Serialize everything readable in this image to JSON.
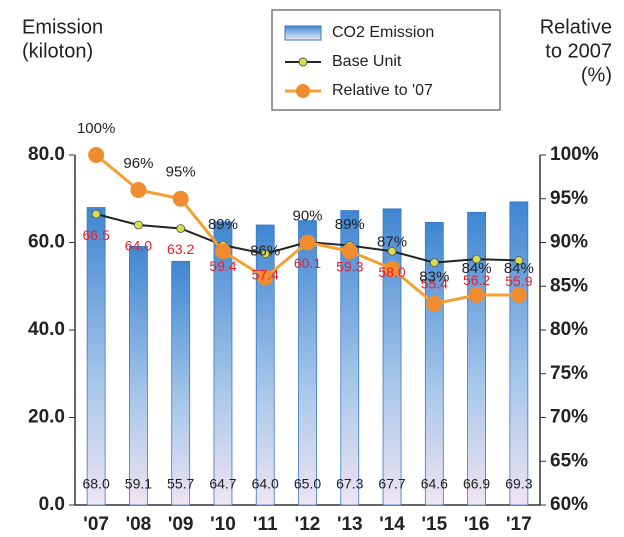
{
  "chart_data": {
    "type": "bar-line",
    "y_label": [
      "Emission",
      "(kiloton)"
    ],
    "y2_label": [
      "Relative",
      "to 2007",
      "(%)"
    ],
    "categories": [
      "'07",
      "'08",
      "'09",
      "'10",
      "'11",
      "'12",
      "'13",
      "'14",
      "'15",
      "'16",
      "'17"
    ],
    "series": [
      {
        "name": "CO2 Emission",
        "type": "bar",
        "color": "#4a8fd6",
        "values": [
          68.0,
          59.1,
          55.7,
          64.7,
          64.0,
          65.0,
          67.3,
          67.7,
          64.6,
          66.9,
          69.3
        ],
        "value_labels": [
          "68.0",
          "59.1",
          "55.7",
          "64.7",
          "64.0",
          "65.0",
          "67.3",
          "67.7",
          "64.6",
          "66.9",
          "69.3"
        ]
      },
      {
        "name": "Base Unit",
        "type": "line",
        "color": "#222222",
        "marker_color": "#d7e04a",
        "values": [
          66.5,
          64.0,
          63.2,
          59.4,
          57.4,
          60.1,
          59.3,
          58.0,
          55.4,
          56.2,
          55.9
        ],
        "value_labels": [
          "66.5",
          "64.0",
          "63.2",
          "59.4",
          "57.4",
          "60.1",
          "59.3",
          "58.0",
          "55.4",
          "56.2",
          "55.9"
        ]
      },
      {
        "name": "Relative to '07",
        "type": "line",
        "axis": "y2",
        "color": "#f5a030",
        "marker_color": "#f08c30",
        "values": [
          100,
          96,
          95,
          89,
          86,
          90,
          89,
          87,
          83,
          84,
          84
        ],
        "value_labels": [
          "100%",
          "96%",
          "95%",
          "89%",
          "86%",
          "90%",
          "89%",
          "87%",
          "83%",
          "84%",
          "84%"
        ]
      }
    ],
    "ylim": [
      0,
      80
    ],
    "yticks": [
      {
        "value": 0,
        "label": "0.0"
      },
      {
        "value": 20,
        "label": "20.0"
      },
      {
        "value": 40,
        "label": "40.0"
      },
      {
        "value": 60,
        "label": "60.0"
      },
      {
        "value": 80,
        "label": "80.0"
      }
    ],
    "y2lim": [
      60,
      100
    ],
    "y2ticks": [
      {
        "value": 60,
        "label": "60%"
      },
      {
        "value": 65,
        "label": "65%"
      },
      {
        "value": 70,
        "label": "70%"
      },
      {
        "value": 75,
        "label": "75%"
      },
      {
        "value": 80,
        "label": "80%"
      },
      {
        "value": 85,
        "label": "85%"
      },
      {
        "value": 90,
        "label": "90%"
      },
      {
        "value": 95,
        "label": "95%"
      },
      {
        "value": 100,
        "label": "100%"
      }
    ]
  }
}
